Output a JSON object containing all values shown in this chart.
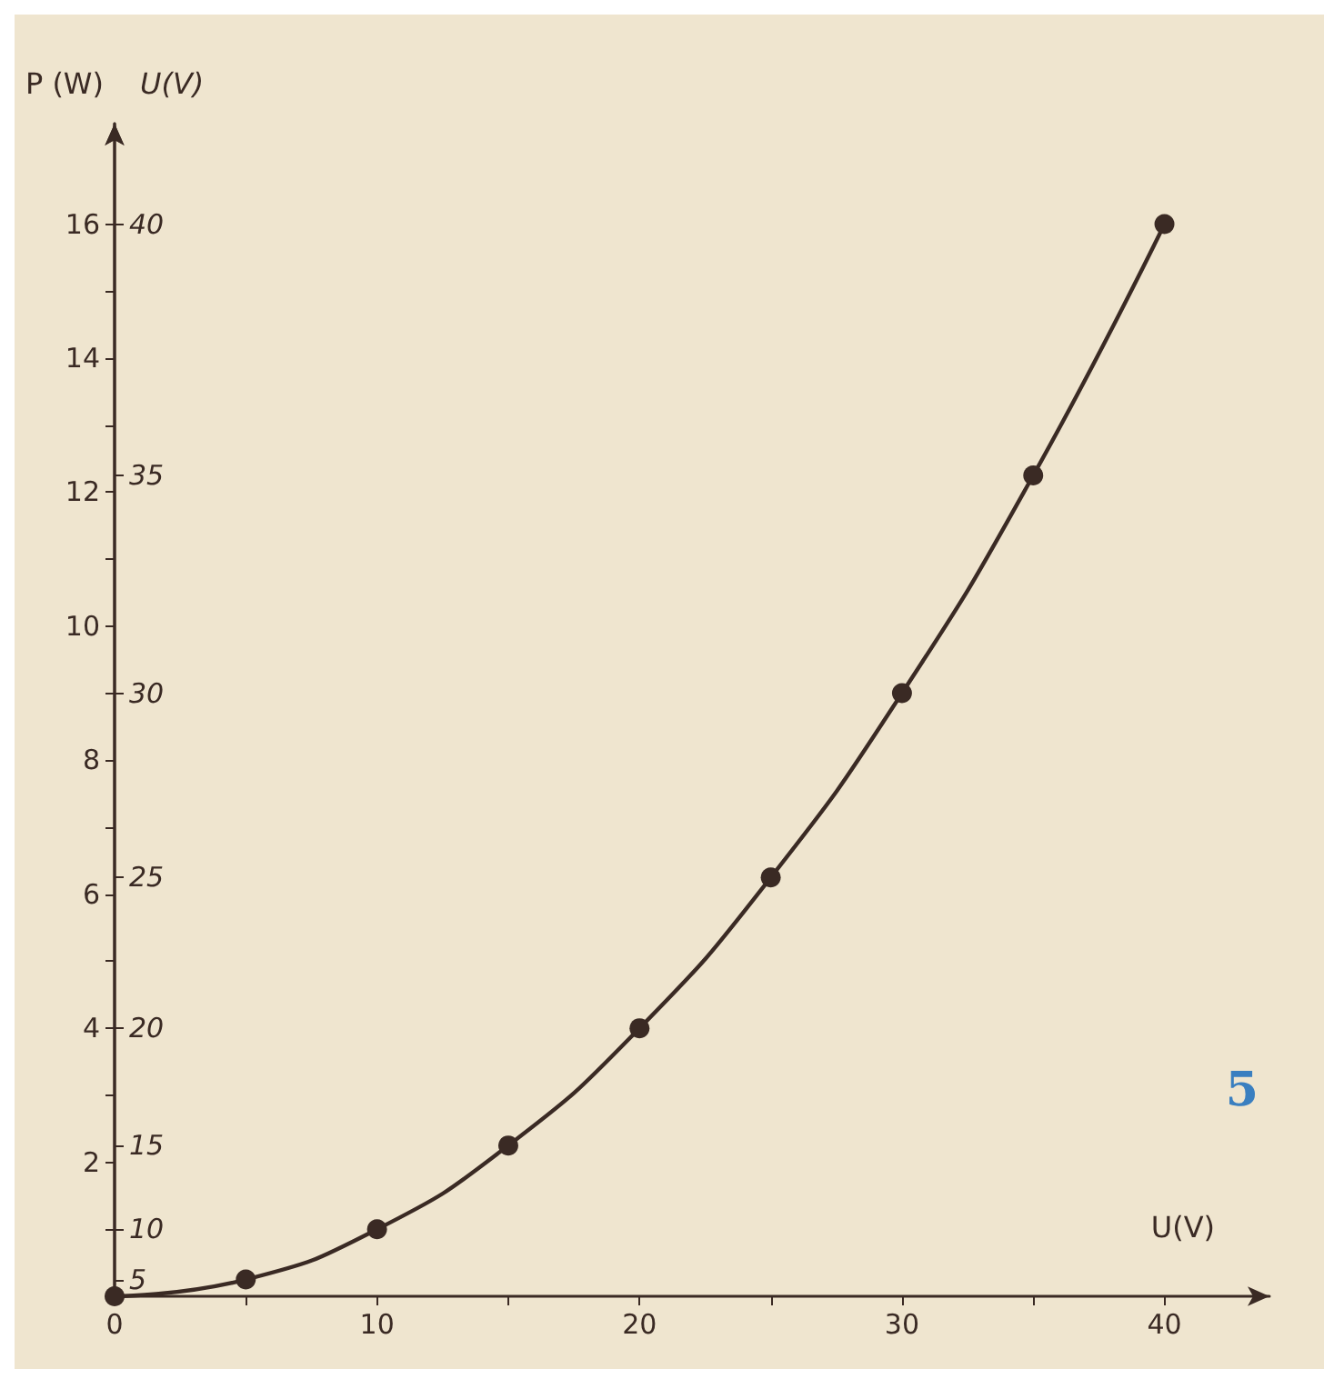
{
  "chart_data": {
    "type": "line",
    "xlabel": "U(V)",
    "ylabel": "P (W)",
    "y2label": "U(V)",
    "x": [
      0,
      5,
      10,
      15,
      20,
      25,
      30,
      35,
      40
    ],
    "series": [
      {
        "color": "#3a2a24",
        "values": [
          0,
          0.25,
          1,
          2.25,
          4,
          6.25,
          9,
          12.25,
          16
        ]
      }
    ],
    "xlim": [
      0,
      44
    ],
    "xticks": [
      0,
      {
        "value": 5,
        "label": null
      },
      10,
      {
        "value": 15,
        "label": null
      },
      20,
      {
        "value": 25,
        "label": null
      },
      30,
      {
        "value": 35,
        "label": null
      },
      40
    ],
    "ylim": [
      0,
      17.5
    ],
    "yticks": [
      {
        "value": 1,
        "label": null
      },
      2,
      {
        "value": 3,
        "label": null
      },
      4,
      {
        "value": 5,
        "label": null
      },
      6,
      {
        "value": 7,
        "label": null
      },
      8,
      {
        "value": 9,
        "label": null
      },
      10,
      {
        "value": 11,
        "label": null
      },
      12,
      {
        "value": 13,
        "label": null
      },
      14,
      {
        "value": 15,
        "label": null
      },
      16
    ],
    "marker": "circle",
    "line_style": "solid",
    "grid": false,
    "annotations": [
      "5",
      "5",
      "10",
      "15",
      "20",
      "25",
      "30",
      "35",
      "40"
    ]
  }
}
